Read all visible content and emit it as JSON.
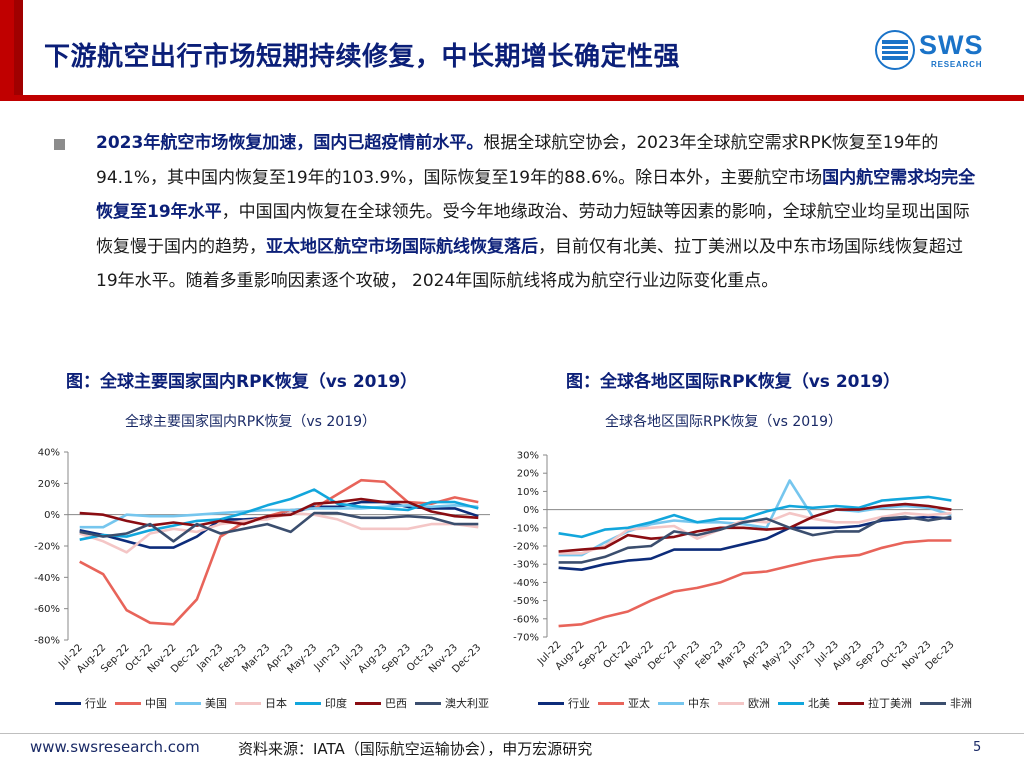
{
  "header": {
    "title": "下游航空出行市场短期持续修复，中长期增长确定性强",
    "logo_text": "SWS",
    "logo_sub": "RESEARCH"
  },
  "body": {
    "p1_bold": "2023年航空市场恢复加速，国内已超疫情前水平。",
    "p1_text": "根据全球航空协会，2023年全球航空需求RPK恢复至19年的94.1%，其中国内恢复至19年的103.9%，国际恢复至19年的88.6%。除日本外，主要航空市场",
    "p1_bold2": "国内航空需求均完全恢复至19年水平",
    "p1_text2": "，中国国内恢复在全球领先。受今年地缘政治、劳动力短缺等因素的影响，全球航空业均呈现出国际恢复慢于国内的趋势，",
    "p1_bold3": "亚太地区航空市场国际航线恢复落后",
    "p1_text3": "，目前仅有北美、拉丁美洲以及中东市场国际线恢复超过19年水平。随着多重影响因素逐个攻破， 2024年国际航线将成为航空行业边际变化重点。"
  },
  "figures": {
    "left_title": "图：全球主要国家国内RPK恢复（vs 2019）",
    "right_title": "图：全球各地区国际RPK恢复（vs 2019）"
  },
  "chart_data": [
    {
      "type": "line",
      "title": "全球主要国家国内RPK恢复（vs 2019）",
      "categories": [
        "Jul-22",
        "Aug-22",
        "Sep-22",
        "Oct-22",
        "Nov-22",
        "Dec-22",
        "Jan-23",
        "Feb-23",
        "Mar-23",
        "Apr-23",
        "May-23",
        "Jun-23",
        "Jul-23",
        "Aug-23",
        "Sep-23",
        "Oct-23",
        "Nov-23",
        "Dec-23"
      ],
      "ylim": [
        -80,
        40
      ],
      "yticks": [
        -80,
        -60,
        -40,
        -20,
        0,
        20,
        40
      ],
      "tick_labels": [
        "-80%",
        "-60%",
        "-40%",
        "-20%",
        "0%",
        "20%",
        "40%"
      ],
      "series": [
        {
          "name": "行业",
          "color": "#0d2c7a",
          "values": [
            -10,
            -13,
            -17,
            -21,
            -21,
            -14,
            -3,
            -3,
            -2,
            1,
            5,
            5,
            8,
            8,
            5,
            4,
            4,
            -1
          ]
        },
        {
          "name": "中国",
          "color": "#e8645a",
          "values": [
            -30,
            -38,
            -61,
            -69,
            -70,
            -54,
            -14,
            -5,
            -1,
            3,
            4,
            13,
            22,
            21,
            8,
            7,
            11,
            8
          ]
        },
        {
          "name": "美国",
          "color": "#76c6ee",
          "values": [
            -8,
            -8,
            0,
            -1,
            -1,
            0,
            1,
            2,
            3,
            3,
            4,
            4,
            4,
            5,
            6,
            5,
            6,
            5
          ]
        },
        {
          "name": "日本",
          "color": "#f4c6c6",
          "values": [
            -12,
            -17,
            -24,
            -12,
            -9,
            -11,
            -6,
            -4,
            -3,
            1,
            0,
            -3,
            -9,
            -9,
            -9,
            -6,
            -6,
            -8
          ]
        },
        {
          "name": "印度",
          "color": "#12a6dc",
          "values": [
            -16,
            -13,
            -14,
            -10,
            -7,
            -4,
            -3,
            1,
            6,
            10,
            16,
            7,
            5,
            4,
            3,
            8,
            8,
            4
          ]
        },
        {
          "name": "巴西",
          "color": "#8a0d12",
          "values": [
            1,
            0,
            -4,
            -7,
            -5,
            -7,
            -4,
            -6,
            -1,
            0,
            7,
            8,
            10,
            8,
            8,
            2,
            -1,
            -2
          ]
        },
        {
          "name": "澳大利亚",
          "color": "#3b4e6e",
          "values": [
            -11,
            -14,
            -12,
            -6,
            -17,
            -6,
            -12,
            -9,
            -6,
            -11,
            1,
            1,
            -2,
            -2,
            -1,
            -2,
            -6,
            -6
          ]
        }
      ]
    },
    {
      "type": "line",
      "title": "全球各地区国际RPK恢复（vs 2019）",
      "categories": [
        "Jul-22",
        "Aug-22",
        "Sep-22",
        "Oct-22",
        "Nov-22",
        "Dec-22",
        "Jan-23",
        "Feb-23",
        "Mar-23",
        "Apr-23",
        "May-23",
        "Jun-23",
        "Jul-23",
        "Aug-23",
        "Sep-23",
        "Oct-23",
        "Nov-23",
        "Dec-23"
      ],
      "ylim": [
        -70,
        30
      ],
      "yticks": [
        -70,
        -60,
        -50,
        -40,
        -30,
        -20,
        -10,
        0,
        10,
        20,
        30
      ],
      "tick_labels": [
        "-70%",
        "-60%",
        "-50%",
        "-40%",
        "-30%",
        "-20%",
        "-10%",
        "0%",
        "10%",
        "20%",
        "30%"
      ],
      "series": [
        {
          "name": "行业",
          "color": "#0d2c7a",
          "values": [
            -32,
            -33,
            -30,
            -28,
            -27,
            -22,
            -22,
            -22,
            -19,
            -16,
            -10,
            -10,
            -10,
            -9,
            -6,
            -5,
            -4,
            -5
          ]
        },
        {
          "name": "亚太",
          "color": "#e8645a",
          "values": [
            -64,
            -63,
            -59,
            -56,
            -50,
            -45,
            -43,
            -40,
            -35,
            -34,
            -31,
            -28,
            -26,
            -25,
            -21,
            -18,
            -17,
            -17
          ]
        },
        {
          "name": "中东",
          "color": "#76c6ee",
          "values": [
            -25,
            -25,
            -18,
            -12,
            -8,
            -6,
            -7,
            -7,
            -8,
            -10,
            16,
            -4,
            0,
            -1,
            1,
            2,
            1,
            -3
          ]
        },
        {
          "name": "欧洲",
          "color": "#f4c6c6",
          "values": [
            -24,
            -24,
            -20,
            -11,
            -10,
            -9,
            -16,
            -11,
            -6,
            -7,
            -2,
            -5,
            -7,
            -7,
            -4,
            -2,
            -3,
            -2
          ]
        },
        {
          "name": "北美",
          "color": "#12a6dc",
          "values": [
            -13,
            -15,
            -11,
            -10,
            -7,
            -3,
            -7,
            -5,
            -5,
            -1,
            2,
            1,
            2,
            1,
            5,
            6,
            7,
            5
          ]
        },
        {
          "name": "拉丁美洲",
          "color": "#8a0d12",
          "values": [
            -23,
            -22,
            -21,
            -14,
            -16,
            -15,
            -12,
            -10,
            -10,
            -11,
            -10,
            -4,
            0,
            0,
            2,
            3,
            2,
            0
          ]
        },
        {
          "name": "非洲",
          "color": "#3b4e6e",
          "values": [
            -29,
            -29,
            -26,
            -21,
            -20,
            -12,
            -14,
            -11,
            -7,
            -5,
            -10,
            -14,
            -12,
            -12,
            -5,
            -4,
            -6,
            -4
          ]
        }
      ]
    }
  ],
  "footer": {
    "url": "www.swsresearch.com",
    "source": "资料来源：IATA（国际航空运输协会），申万宏源研究",
    "page": "5"
  }
}
